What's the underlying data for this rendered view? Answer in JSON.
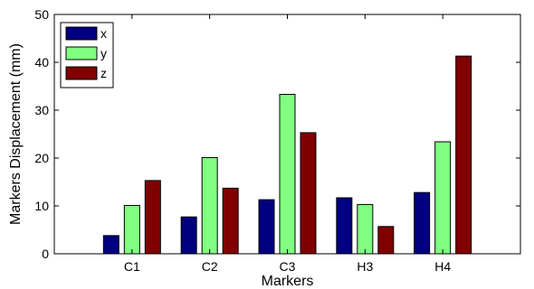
{
  "chart_data": {
    "type": "bar",
    "xlabel": "Markers",
    "ylabel": "Markers Displacement (mm)",
    "categories": [
      "C1",
      "C2",
      "C3",
      "H3",
      "H4"
    ],
    "ylim": [
      0,
      50
    ],
    "yticks": [
      0,
      10,
      20,
      30,
      40,
      50
    ],
    "grid": false,
    "legend_position": "top-left",
    "series": [
      {
        "name": "x",
        "color": "#000080",
        "values": [
          3.8,
          7.7,
          11.3,
          11.7,
          12.8
        ]
      },
      {
        "name": "y",
        "color": "#80ff80",
        "values": [
          10.1,
          20.1,
          33.3,
          10.3,
          23.4
        ]
      },
      {
        "name": "z",
        "color": "#800000",
        "values": [
          15.3,
          13.7,
          25.3,
          5.7,
          41.3
        ]
      }
    ]
  }
}
